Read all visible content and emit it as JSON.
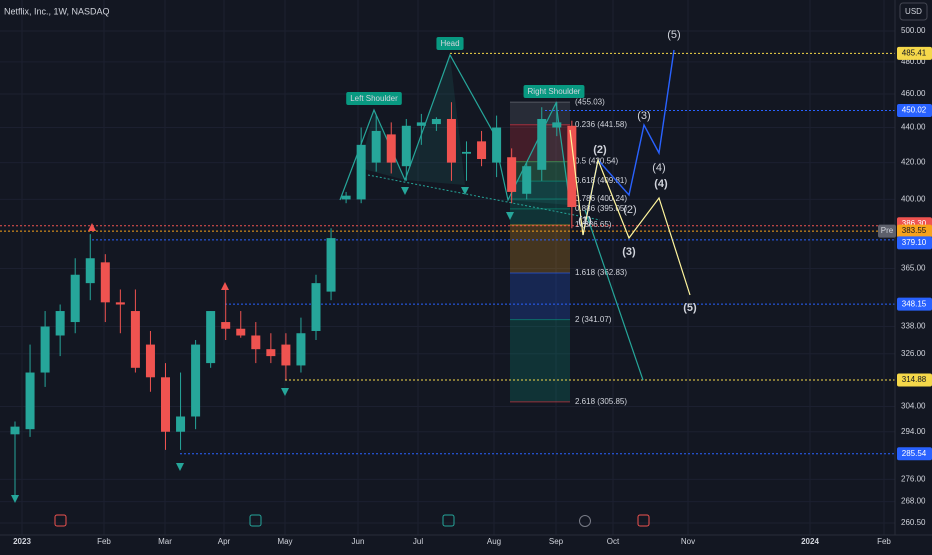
{
  "chart_data": {
    "type": "candlestick",
    "title": "Netflix, Inc., 1W, NASDAQ",
    "currency": "USD",
    "log_scale": true,
    "grid": true,
    "up_color": "#26a69a",
    "down_color": "#ef5350",
    "ylim": [
      256.4,
      521
    ],
    "yticks": [
      {
        "value": 260.5,
        "label": "260.50"
      },
      {
        "value": 268,
        "label": "268.00"
      },
      {
        "value": 276,
        "label": "276.00"
      },
      {
        "value": 294,
        "label": "294.00"
      },
      {
        "value": 304,
        "label": "304.00"
      },
      {
        "value": 326,
        "label": "326.00"
      },
      {
        "value": 338,
        "label": "338.00"
      },
      {
        "value": 365,
        "label": "365.00"
      },
      {
        "value": 400,
        "label": "400.00"
      },
      {
        "value": 420,
        "label": "420.00"
      },
      {
        "value": 440,
        "label": "440.00"
      },
      {
        "value": 460,
        "label": "460.00"
      },
      {
        "value": 480,
        "label": "480.00"
      },
      {
        "value": 500,
        "label": "500.00"
      }
    ],
    "xticks": [
      "2023",
      "Feb",
      "Mar",
      "Apr",
      "May",
      "Jun",
      "Jul",
      "Aug",
      "Sep",
      "Oct",
      "Nov",
      "2024",
      "Feb"
    ],
    "candles": [
      {
        "open": 293,
        "high": 298,
        "low": 270,
        "close": 296
      },
      {
        "open": 295,
        "high": 330,
        "low": 292,
        "close": 318
      },
      {
        "open": 318,
        "high": 345,
        "low": 312,
        "close": 338
      },
      {
        "open": 334,
        "high": 348,
        "low": 325,
        "close": 345
      },
      {
        "open": 340,
        "high": 370,
        "low": 335,
        "close": 362
      },
      {
        "open": 358,
        "high": 382,
        "low": 350,
        "close": 370
      },
      {
        "open": 368,
        "high": 372,
        "low": 340,
        "close": 349
      },
      {
        "open": 349,
        "high": 355,
        "low": 335,
        "close": 348
      },
      {
        "open": 345,
        "high": 355,
        "low": 318,
        "close": 320
      },
      {
        "open": 330,
        "high": 336,
        "low": 310,
        "close": 316
      },
      {
        "open": 316,
        "high": 322,
        "low": 287,
        "close": 294
      },
      {
        "open": 294,
        "high": 318,
        "low": 287,
        "close": 300
      },
      {
        "open": 300,
        "high": 332,
        "low": 295,
        "close": 330
      },
      {
        "open": 322,
        "high": 345,
        "low": 320,
        "close": 345
      },
      {
        "open": 340,
        "high": 355,
        "low": 332,
        "close": 337
      },
      {
        "open": 337,
        "high": 345,
        "low": 333,
        "close": 334
      },
      {
        "open": 334,
        "high": 340,
        "low": 322,
        "close": 328
      },
      {
        "open": 328,
        "high": 335,
        "low": 322,
        "close": 325
      },
      {
        "open": 330,
        "high": 335,
        "low": 315,
        "close": 321
      },
      {
        "open": 321,
        "high": 342,
        "low": 318,
        "close": 335
      },
      {
        "open": 336,
        "high": 362,
        "low": 332,
        "close": 358
      },
      {
        "open": 354,
        "high": 385,
        "low": 350,
        "close": 380
      },
      {
        "open": 400,
        "high": 404,
        "low": 398,
        "close": 402
      },
      {
        "open": 400,
        "high": 440,
        "low": 398,
        "close": 430
      },
      {
        "open": 420,
        "high": 447,
        "low": 415,
        "close": 438
      },
      {
        "open": 436,
        "high": 443,
        "low": 414,
        "close": 420
      },
      {
        "open": 418,
        "high": 445,
        "low": 410,
        "close": 441
      },
      {
        "open": 441,
        "high": 448,
        "low": 430,
        "close": 443
      },
      {
        "open": 442,
        "high": 446,
        "low": 438,
        "close": 445
      },
      {
        "open": 445,
        "high": 455,
        "low": 410,
        "close": 420
      },
      {
        "open": 425,
        "high": 432,
        "low": 410,
        "close": 426
      },
      {
        "open": 432,
        "high": 438,
        "low": 418,
        "close": 422
      },
      {
        "open": 420,
        "high": 447,
        "low": 412,
        "close": 440
      },
      {
        "open": 423,
        "high": 428,
        "low": 398,
        "close": 404
      },
      {
        "open": 403,
        "high": 420,
        "low": 400,
        "close": 418
      },
      {
        "open": 416,
        "high": 452,
        "low": 410,
        "close": 445
      },
      {
        "open": 440,
        "high": 455,
        "low": 435,
        "close": 443
      },
      {
        "open": 441,
        "high": 444,
        "low": 385,
        "close": 396
      }
    ],
    "levels": [
      {
        "value": 485.41,
        "label": "485.41",
        "color": "#f5d84a"
      },
      {
        "value": 450.02,
        "label": "450.02",
        "color": "#2962ff"
      },
      {
        "value": 386.3,
        "label": "386.30",
        "color": "#ef5350"
      },
      {
        "value": 383.55,
        "label": "383.55",
        "color": "#f7a21b"
      },
      {
        "value": 379.1,
        "label": "379.10",
        "color": "#2962ff"
      },
      {
        "value": 348.15,
        "label": "348.15",
        "color": "#2962ff"
      },
      {
        "value": 314.88,
        "label": "314.88",
        "color": "#f5d84a"
      },
      {
        "value": 285.54,
        "label": "285.54",
        "color": "#2962ff"
      }
    ],
    "pre_label": "Pre",
    "fib_levels": [
      {
        "value": 455.03,
        "label": "(455.03)",
        "color": "#787b86"
      },
      {
        "value": 441.58,
        "label": "0.236 (441.58)",
        "color": "#f23645"
      },
      {
        "value": 420.54,
        "label": "0.5 (420.54)",
        "color": "#4caf50"
      },
      {
        "value": 409.81,
        "label": "0.618 (409.81)",
        "color": "#089981"
      },
      {
        "value": 400.24,
        "label": "0.786 (400.24)",
        "color": "#089981"
      },
      {
        "value": 395.05,
        "label": "0.886 (395.05)",
        "color": "#089981"
      },
      {
        "value": 386.65,
        "label": "1 (386.65)",
        "color": "#f7a21b"
      },
      {
        "value": 362.83,
        "label": "1.618 (362.83)",
        "color": "#2962ff"
      },
      {
        "value": 341.07,
        "label": "2 (341.07)",
        "color": "#089981"
      },
      {
        "value": 305.85,
        "label": "2.618 (305.85)",
        "color": "#f23645"
      }
    ],
    "pattern_labels": [
      "Left Shoulder",
      "Head",
      "Right Shoulder"
    ],
    "wave_labels_blue": [
      "(2)",
      "(3)",
      "(4)",
      "(5)"
    ],
    "wave_labels_yellow": [
      "(1)",
      "(2)",
      "(3)",
      "(4)",
      "(5)"
    ]
  }
}
